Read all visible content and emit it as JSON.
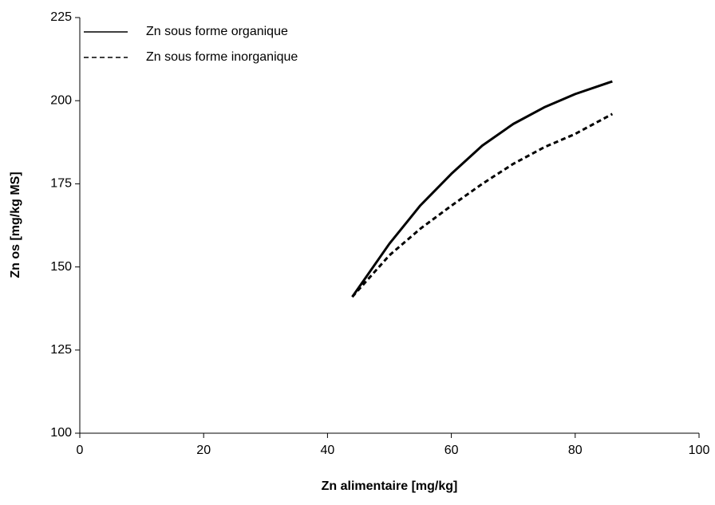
{
  "chart_data": {
    "type": "line",
    "xlabel": "Zn alimentaire [mg/kg]",
    "ylabel": "Zn os [mg/kg MS]",
    "xlim": [
      0,
      100
    ],
    "xticks": [
      0,
      20,
      40,
      60,
      80,
      100
    ],
    "ylim": [
      100,
      225
    ],
    "yticks": [
      100,
      125,
      150,
      175,
      200,
      225
    ],
    "grid": false,
    "legend": "upper left",
    "series": [
      {
        "name": "Zn sous forme organique",
        "color": "#000000",
        "line_style": "solid",
        "x": [
          44,
          50,
          55,
          60,
          65,
          70,
          75,
          80,
          86
        ],
        "values": [
          141,
          157,
          168.5,
          178,
          186.5,
          193,
          198,
          202,
          205.8
        ]
      },
      {
        "name": "Zn sous forme inorganique",
        "color": "#000000",
        "line_style": "dashed",
        "x": [
          44,
          50,
          55,
          60,
          65,
          70,
          75,
          80,
          86
        ],
        "values": [
          141,
          153.5,
          161.5,
          168.4,
          175,
          181,
          186,
          190,
          196
        ]
      }
    ]
  }
}
